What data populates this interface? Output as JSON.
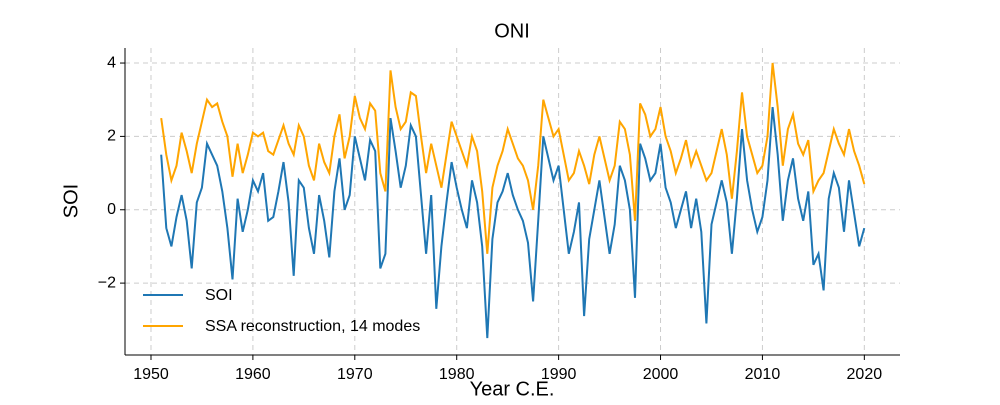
{
  "chart_data": {
    "type": "line",
    "title": "ONI",
    "xlabel": "Year C.E.",
    "ylabel": "SOI",
    "x": [
      1951,
      1951.5,
      1952,
      1952.5,
      1953,
      1953.5,
      1954,
      1954.5,
      1955,
      1955.5,
      1956,
      1956.5,
      1957,
      1957.5,
      1958,
      1958.5,
      1959,
      1959.5,
      1960,
      1960.5,
      1961,
      1961.5,
      1962,
      1962.5,
      1963,
      1963.5,
      1964,
      1964.5,
      1965,
      1965.5,
      1966,
      1966.5,
      1967,
      1967.5,
      1968,
      1968.5,
      1969,
      1969.5,
      1970,
      1970.5,
      1971,
      1971.5,
      1972,
      1972.5,
      1973,
      1973.5,
      1974,
      1974.5,
      1975,
      1975.5,
      1976,
      1976.5,
      1977,
      1977.5,
      1978,
      1978.5,
      1979,
      1979.5,
      1980,
      1980.5,
      1981,
      1981.5,
      1982,
      1982.5,
      1983,
      1983.5,
      1984,
      1984.5,
      1985,
      1985.5,
      1986,
      1986.5,
      1987,
      1987.5,
      1988,
      1988.5,
      1989,
      1989.5,
      1990,
      1990.5,
      1991,
      1991.5,
      1992,
      1992.5,
      1993,
      1993.5,
      1994,
      1994.5,
      1995,
      1995.5,
      1996,
      1996.5,
      1997,
      1997.5,
      1998,
      1998.5,
      1999,
      1999.5,
      2000,
      2000.5,
      2001,
      2001.5,
      2002,
      2002.5,
      2003,
      2003.5,
      2004,
      2004.5,
      2005,
      2005.5,
      2006,
      2006.5,
      2007,
      2007.5,
      2008,
      2008.5,
      2009,
      2009.5,
      2010,
      2010.5,
      2011,
      2011.5,
      2012,
      2012.5,
      2013,
      2013.5,
      2014,
      2014.5,
      2015,
      2015.5,
      2016,
      2016.5,
      2017,
      2017.5,
      2018,
      2018.5,
      2019,
      2019.5,
      2020
    ],
    "series": [
      {
        "name": "SOI",
        "color": "#1f77b4",
        "values": [
          1.5,
          -0.5,
          -1.0,
          -0.2,
          0.4,
          -0.3,
          -1.6,
          0.2,
          0.6,
          1.8,
          1.5,
          1.2,
          0.5,
          -0.5,
          -1.9,
          0.3,
          -0.6,
          0.0,
          0.8,
          0.5,
          1.0,
          -0.3,
          -0.2,
          0.5,
          1.3,
          0.2,
          -1.8,
          0.8,
          0.6,
          -0.5,
          -1.2,
          0.4,
          -0.3,
          -1.3,
          0.5,
          1.4,
          0.0,
          0.4,
          2.0,
          1.4,
          0.8,
          1.9,
          1.6,
          -1.6,
          -1.2,
          2.5,
          1.6,
          0.6,
          1.2,
          2.3,
          2.0,
          0.4,
          -1.2,
          0.4,
          -2.7,
          -1.0,
          0.2,
          1.3,
          0.6,
          0.0,
          -0.5,
          0.8,
          0.2,
          -1.0,
          -3.5,
          -0.8,
          0.2,
          0.5,
          1.0,
          0.4,
          0.0,
          -0.3,
          -0.9,
          -2.5,
          -0.3,
          2.0,
          1.4,
          0.8,
          1.2,
          0.0,
          -1.2,
          -0.6,
          0.2,
          -2.9,
          -0.8,
          0.0,
          0.8,
          -0.2,
          -1.2,
          -0.4,
          1.2,
          0.8,
          0.0,
          -2.4,
          1.8,
          1.4,
          0.8,
          1.0,
          1.8,
          0.6,
          0.2,
          -0.5,
          0.0,
          0.5,
          -0.5,
          0.3,
          -0.6,
          -3.1,
          -0.4,
          0.2,
          0.8,
          0.2,
          -1.2,
          0.3,
          2.2,
          0.8,
          0.0,
          -0.6,
          -0.2,
          0.8,
          2.8,
          1.5,
          -0.3,
          0.8,
          1.4,
          0.3,
          -0.3,
          0.5,
          -1.5,
          -1.2,
          -2.2,
          0.3,
          1.0,
          0.6,
          -0.6,
          0.8,
          -0.1,
          -1.0,
          -0.5
        ]
      },
      {
        "name": "SSA reconstruction, 14 modes",
        "color": "#ffa500",
        "values": [
          2.5,
          1.5,
          0.8,
          1.2,
          2.1,
          1.6,
          1.0,
          1.8,
          2.4,
          3.0,
          2.8,
          2.9,
          2.4,
          2.0,
          0.9,
          1.8,
          1.0,
          1.5,
          2.1,
          2.0,
          2.1,
          1.6,
          1.5,
          1.9,
          2.3,
          1.8,
          1.5,
          2.3,
          2.0,
          1.2,
          0.8,
          1.8,
          1.3,
          1.0,
          2.0,
          2.6,
          1.4,
          2.0,
          3.1,
          2.5,
          2.2,
          2.9,
          2.7,
          1.0,
          0.5,
          3.8,
          2.8,
          2.2,
          2.4,
          3.2,
          3.1,
          2.0,
          1.0,
          1.8,
          1.2,
          0.6,
          1.5,
          2.4,
          2.0,
          1.6,
          1.2,
          2.0,
          1.6,
          0.5,
          -1.2,
          0.6,
          1.2,
          1.6,
          2.2,
          1.8,
          1.4,
          1.2,
          0.8,
          0.0,
          1.2,
          3.0,
          2.5,
          2.0,
          2.2,
          1.5,
          0.8,
          1.0,
          1.6,
          1.2,
          0.7,
          1.5,
          2.0,
          1.4,
          0.8,
          1.2,
          2.4,
          2.2,
          1.5,
          -0.3,
          2.9,
          2.6,
          2.0,
          2.2,
          2.8,
          2.0,
          1.6,
          1.0,
          1.4,
          1.9,
          1.2,
          1.6,
          1.2,
          0.8,
          1.0,
          1.6,
          2.2,
          1.5,
          0.3,
          1.6,
          3.2,
          2.0,
          1.5,
          1.0,
          1.2,
          2.0,
          4.0,
          2.8,
          1.2,
          2.2,
          2.6,
          1.8,
          1.5,
          1.9,
          0.5,
          0.8,
          1.0,
          1.6,
          2.2,
          1.8,
          1.5,
          2.2,
          1.6,
          1.2,
          0.7
        ]
      }
    ],
    "xlim": [
      1947.45,
      2023.5
    ],
    "xticks": [
      1950,
      1960,
      1970,
      1980,
      1990,
      2000,
      2010,
      2020
    ],
    "ylim": [
      -3.96,
      4.41
    ],
    "yticks": [
      {
        "value": -2,
        "label": "−2"
      },
      0,
      2,
      4
    ],
    "grid": true,
    "legend": "lower left"
  }
}
